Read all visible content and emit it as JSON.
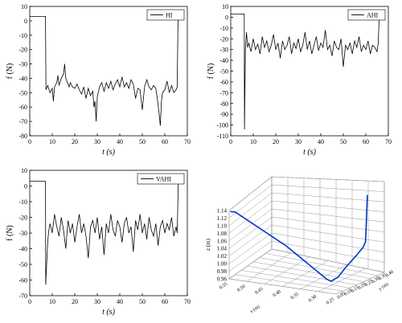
{
  "chart_data": [
    {
      "type": "line",
      "panel": "top-left",
      "legend": "HI",
      "legend_position": "top-right",
      "xlabel": "t (s)",
      "ylabel": "f (N)",
      "xlim": [
        0,
        70
      ],
      "ylim": [
        -80,
        10
      ],
      "xticks": [
        0,
        10,
        20,
        30,
        40,
        50,
        60,
        70
      ],
      "yticks": [
        10,
        0,
        -10,
        -20,
        -30,
        -40,
        -50,
        -60,
        -70,
        -80
      ],
      "x": [
        0,
        7,
        7.2,
        8,
        9,
        10,
        10.5,
        11,
        12,
        12.5,
        13,
        14,
        15,
        15.5,
        16,
        17,
        17.5,
        18,
        19,
        20,
        21,
        22,
        23,
        24,
        25,
        26,
        27,
        28,
        28.5,
        29,
        29.5,
        30,
        31,
        32,
        33,
        34,
        35,
        36,
        37,
        38,
        39,
        40,
        41,
        42,
        43,
        44,
        45,
        46,
        47,
        48,
        49,
        50,
        51,
        52,
        53,
        54,
        55,
        56,
        57,
        57.5,
        58,
        58.5,
        59,
        60,
        61,
        62,
        63,
        64,
        65,
        65.5,
        65.8,
        66
      ],
      "values": [
        3,
        3,
        -48,
        -45,
        -50,
        -47,
        -56,
        -46,
        -43,
        -38,
        -45,
        -40,
        -37,
        -30,
        -40,
        -44,
        -46,
        -43,
        -46,
        -47,
        -44,
        -48,
        -51,
        -46,
        -54,
        -47,
        -52,
        -49,
        -60,
        -56,
        -70,
        -53,
        -46,
        -43,
        -49,
        -43,
        -47,
        -42,
        -48,
        -44,
        -41,
        -46,
        -39,
        -46,
        -43,
        -47,
        -41,
        -44,
        -54,
        -47,
        -48,
        -62,
        -46,
        -41,
        -46,
        -48,
        -45,
        -47,
        -58,
        -65,
        -73,
        -56,
        -50,
        -48,
        -42,
        -50,
        -45,
        -50,
        -48,
        -46,
        -6,
        3
      ]
    },
    {
      "type": "line",
      "panel": "top-right",
      "legend": "AHI",
      "legend_position": "top-right",
      "xlabel": "t (s)",
      "ylabel": "f (N)",
      "xlim": [
        0,
        70
      ],
      "ylim": [
        -110,
        10
      ],
      "xticks": [
        0,
        10,
        20,
        30,
        40,
        50,
        60,
        70
      ],
      "yticks": [
        10,
        0,
        -10,
        -20,
        -30,
        -40,
        -50,
        -60,
        -70,
        -80,
        -90,
        -100,
        -110
      ],
      "x": [
        0,
        6,
        6.1,
        6.5,
        7,
        7.5,
        8,
        9,
        10,
        11,
        12,
        13,
        14,
        15,
        16,
        17,
        18,
        19,
        20,
        21,
        22,
        23,
        24,
        25,
        26,
        27,
        28,
        29,
        30,
        31,
        32,
        33,
        34,
        35,
        36,
        37,
        38,
        39,
        40,
        41,
        42,
        43,
        44,
        45,
        46,
        47,
        48,
        49,
        50,
        51,
        52,
        53,
        54,
        55,
        56,
        57,
        58,
        59,
        60,
        61,
        62,
        63,
        64,
        65,
        65.5,
        65.8,
        66
      ],
      "values": [
        3,
        3,
        -104,
        -30,
        -14,
        -28,
        -24,
        -32,
        -20,
        -30,
        -25,
        -34,
        -18,
        -28,
        -22,
        -32,
        -26,
        -16,
        -30,
        -24,
        -38,
        -22,
        -30,
        -26,
        -18,
        -34,
        -24,
        -29,
        -20,
        -32,
        -26,
        -14,
        -30,
        -22,
        -34,
        -26,
        -18,
        -31,
        -24,
        -28,
        -12,
        -30,
        -26,
        -36,
        -22,
        -28,
        -30,
        -20,
        -46,
        -26,
        -30,
        -24,
        -34,
        -22,
        -28,
        -18,
        -32,
        -26,
        -30,
        -22,
        -34,
        -26,
        -28,
        -32,
        -24,
        -8,
        3
      ]
    },
    {
      "type": "line",
      "panel": "bottom-left",
      "legend": "VAHI",
      "legend_position": "top-right",
      "xlabel": "t (s)",
      "ylabel": "f (N)",
      "xlim": [
        0,
        70
      ],
      "ylim": [
        -70,
        10
      ],
      "xticks": [
        0,
        10,
        20,
        30,
        40,
        50,
        60,
        70
      ],
      "yticks": [
        10,
        0,
        -10,
        -20,
        -30,
        -40,
        -50,
        -60,
        -70
      ],
      "x": [
        0,
        7,
        7.1,
        7.5,
        8,
        8.5,
        9,
        10,
        11,
        12,
        13,
        14,
        15,
        16,
        17,
        18,
        19,
        20,
        21,
        22,
        23,
        24,
        25,
        26,
        27,
        28,
        29,
        30,
        31,
        32,
        33,
        34,
        35,
        36,
        37,
        38,
        39,
        40,
        41,
        42,
        43,
        44,
        45,
        46,
        47,
        48,
        49,
        50,
        51,
        52,
        53,
        54,
        55,
        56,
        57,
        58,
        59,
        60,
        61,
        62,
        63,
        64,
        65,
        65.5,
        65.8,
        66
      ],
      "values": [
        3,
        3,
        -63,
        -50,
        -35,
        -28,
        -24,
        -30,
        -18,
        -26,
        -32,
        -20,
        -28,
        -40,
        -22,
        -30,
        -24,
        -36,
        -26,
        -18,
        -30,
        -24,
        -32,
        -46,
        -26,
        -22,
        -30,
        -20,
        -34,
        -26,
        -44,
        -24,
        -30,
        -18,
        -28,
        -32,
        -22,
        -26,
        -36,
        -24,
        -20,
        -30,
        -26,
        -42,
        -22,
        -28,
        -18,
        -30,
        -24,
        -34,
        -20,
        -28,
        -32,
        -24,
        -38,
        -26,
        -22,
        -30,
        -24,
        -28,
        -20,
        -32,
        -26,
        -30,
        -10,
        3
      ]
    },
    {
      "type": "line3d",
      "panel": "bottom-right",
      "zlabel": "z (m)",
      "xlabel": "x (m)",
      "ylabel": "y (m)",
      "zlim": [
        0.96,
        1.14
      ],
      "zticks": [
        "1.14",
        "1.12",
        "1.10",
        "1.08",
        "1.06",
        "1.04",
        "1.02",
        "1.00",
        "0.98",
        "0.96"
      ],
      "xticks": [
        "0.55",
        "0.50",
        "0.45",
        "0.40",
        "0.35",
        "0.30",
        "0.25"
      ],
      "yticks": [
        "0.05",
        "0.10",
        "0.15",
        "0.20",
        "0.25",
        "0.30",
        "0.35",
        "0.40"
      ],
      "color": "#0033cc",
      "points": [
        {
          "x": 0.55,
          "y": 0.06,
          "z": 1.135
        },
        {
          "x": 0.54,
          "y": 0.07,
          "z": 1.133
        },
        {
          "x": 0.4,
          "y": 0.08,
          "z": 1.06
        },
        {
          "x": 0.29,
          "y": 0.09,
          "z": 0.985
        },
        {
          "x": 0.28,
          "y": 0.1,
          "z": 0.978
        },
        {
          "x": 0.28,
          "y": 0.12,
          "z": 0.979
        },
        {
          "x": 0.28,
          "y": 0.15,
          "z": 0.977
        },
        {
          "x": 0.28,
          "y": 0.18,
          "z": 0.982
        },
        {
          "x": 0.28,
          "y": 0.21,
          "z": 0.988
        },
        {
          "x": 0.28,
          "y": 0.24,
          "z": 0.992
        },
        {
          "x": 0.28,
          "y": 0.27,
          "z": 0.996
        },
        {
          "x": 0.28,
          "y": 0.3,
          "z": 1.0
        },
        {
          "x": 0.28,
          "y": 0.33,
          "z": 1.005
        },
        {
          "x": 0.28,
          "y": 0.36,
          "z": 1.01
        },
        {
          "x": 0.28,
          "y": 0.38,
          "z": 1.02
        },
        {
          "x": 0.28,
          "y": 0.395,
          "z": 1.14
        }
      ]
    }
  ]
}
